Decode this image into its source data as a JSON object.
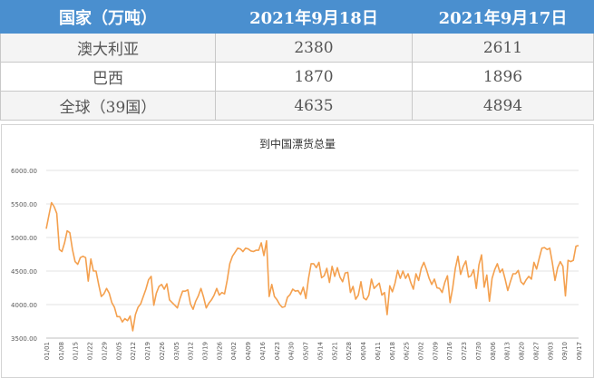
{
  "table": {
    "headers": [
      "国家（万吨）",
      "2021年9月18日",
      "2021年9月17日"
    ],
    "rows": [
      [
        "澳大利亚",
        "2380",
        "2611"
      ],
      [
        "巴西",
        "1870",
        "1896"
      ],
      [
        "全球（39国）",
        "4635",
        "4894"
      ]
    ]
  },
  "chart_data": {
    "type": "line",
    "title": "到中国漂货总量",
    "ylim": [
      3500,
      6000
    ],
    "yticks": [
      "6000.00",
      "5500.00",
      "5000.00",
      "4500.00",
      "4000.00",
      "3500.00"
    ],
    "xticks": [
      "01/01",
      "01/08",
      "01/15",
      "01/22",
      "01/29",
      "02/05",
      "02/12",
      "02/19",
      "02/26",
      "03/05",
      "03/12",
      "03/19",
      "03/26",
      "04/02",
      "04/09",
      "04/16",
      "04/23",
      "04/30",
      "05/07",
      "05/14",
      "05/21",
      "05/28",
      "06/04",
      "06/11",
      "06/18",
      "06/25",
      "07/02",
      "07/09",
      "07/16",
      "07/23",
      "07/30",
      "08/06",
      "08/13",
      "08/20",
      "08/27",
      "09/03",
      "09/10",
      "09/17"
    ],
    "series": [
      {
        "color": "#f4a04e",
        "values": [
          5130,
          5330,
          5520,
          5460,
          5360,
          4820,
          4790,
          4920,
          5100,
          5070,
          4820,
          4640,
          4600,
          4700,
          4720,
          4700,
          4350,
          4680,
          4500,
          4500,
          4300,
          4120,
          4160,
          4240,
          4170,
          4030,
          3960,
          3820,
          3820,
          3740,
          3790,
          3760,
          3830,
          3610,
          3850,
          3960,
          4010,
          4120,
          4230,
          4370,
          4420,
          3990,
          4170,
          4270,
          4300,
          4230,
          4310,
          4070,
          4030,
          3990,
          3950,
          4090,
          4200,
          4200,
          4220,
          4010,
          3930,
          4050,
          4130,
          4240,
          4110,
          3950,
          4020,
          4070,
          4140,
          4240,
          4140,
          4180,
          4160,
          4360,
          4610,
          4720,
          4780,
          4840,
          4830,
          4790,
          4840,
          4830,
          4800,
          4790,
          4810,
          4810,
          4920,
          4730,
          4950,
          4120,
          4300,
          4120,
          4070,
          4000,
          3960,
          3970,
          4110,
          4150,
          4230,
          4200,
          4210,
          4150,
          4260,
          4090,
          4390,
          4610,
          4610,
          4550,
          4630,
          4400,
          4430,
          4540,
          4330,
          4570,
          4420,
          4550,
          4410,
          4340,
          4470,
          4480,
          4180,
          4270,
          4080,
          4140,
          4340,
          4100,
          4070,
          4140,
          4380,
          4240,
          4280,
          4320,
          4140,
          4180,
          3850,
          4280,
          4190,
          4320,
          4510,
          4390,
          4500,
          4390,
          4460,
          4330,
          4230,
          4460,
          4360,
          4540,
          4630,
          4520,
          4390,
          4300,
          4380,
          4250,
          4240,
          4180,
          4330,
          4430,
          4030,
          4250,
          4540,
          4720,
          4450,
          4570,
          4650,
          4410,
          4430,
          4520,
          4240,
          4590,
          4740,
          4260,
          4440,
          4050,
          4390,
          4520,
          4610,
          4480,
          4530,
          4380,
          4210,
          4340,
          4460,
          4460,
          4510,
          4340,
          4300,
          4370,
          4420,
          4380,
          4630,
          4530,
          4690,
          4840,
          4850,
          4820,
          4840,
          4620,
          4360,
          4550,
          4640,
          4570,
          4130,
          4660,
          4640,
          4660,
          4870,
          4880
        ]
      }
    ]
  }
}
